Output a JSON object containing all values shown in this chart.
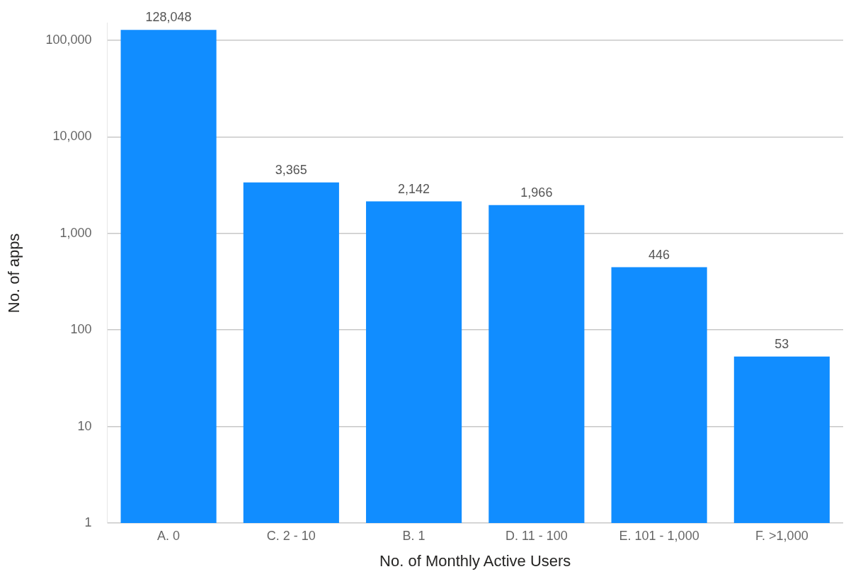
{
  "chart_data": {
    "type": "bar",
    "xlabel": "No. of Monthly Active Users",
    "ylabel": "No. of apps",
    "categories": [
      "A. 0",
      "C. 2 - 10",
      "B. 1",
      "D. 11 - 100",
      "E. 101 - 1,000",
      "F. >1,000"
    ],
    "values": [
      128048,
      3365,
      2142,
      1966,
      446,
      53
    ],
    "value_labels": [
      "128,048",
      "3,365",
      "2,142",
      "1,966",
      "446",
      "53"
    ],
    "color": "#118dff",
    "log": "y",
    "ylim": [
      1,
      150000
    ],
    "yticks": [
      {
        "value": 1,
        "label": "1"
      },
      {
        "value": 10,
        "label": "10"
      },
      {
        "value": 100,
        "label": "100"
      },
      {
        "value": 1000,
        "label": "1,000"
      },
      {
        "value": 10000,
        "label": "10,000"
      },
      {
        "value": 100000,
        "label": "100,000"
      }
    ],
    "grid": "y",
    "legend": false
  }
}
